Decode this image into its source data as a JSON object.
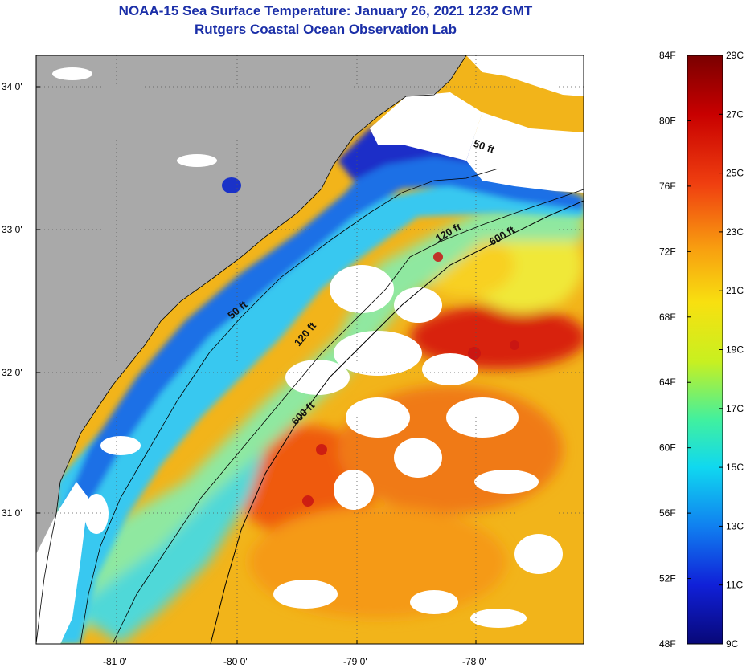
{
  "title_line1": "NOAA-15 Sea Surface Temperature:  January 26, 2021 1232 GMT",
  "title_line2": "Rutgers Coastal Ocean Observation Lab",
  "lat_labels": [
    "34 0'",
    "33 0'",
    "32 0'",
    "31 0'"
  ],
  "lon_labels": [
    "-81 0'",
    "-80 0'",
    "-79 0'",
    "-78 0'"
  ],
  "depth_labels": {
    "d50a": "50 ft",
    "d50b": "50 ft",
    "d120a": "120 ft",
    "d120b": "120 ft",
    "d600a": "600 ft",
    "d600b": "600 ft"
  },
  "colorbar": {
    "f_labels": [
      "84F",
      "80F",
      "76F",
      "72F",
      "68F",
      "64F",
      "60F",
      "56F",
      "52F",
      "48F"
    ],
    "c_labels": [
      "29C",
      "27C",
      "25C",
      "23C",
      "21C",
      "19C",
      "17C",
      "15C",
      "13C",
      "11C",
      "9C"
    ]
  },
  "colors": {
    "land": "#a9a9a9",
    "cold": "#1a32c8",
    "cool": "#1e9bf0",
    "mild": "#6fe0c8",
    "warm": "#f0c020",
    "hot": "#f07010",
    "hottest": "#c81414",
    "cloud": "#ffffff"
  }
}
